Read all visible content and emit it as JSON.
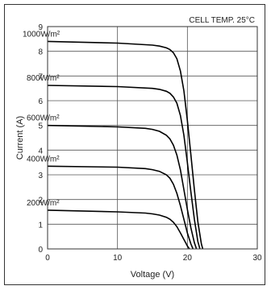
{
  "chart_data": {
    "type": "line",
    "title": "",
    "annotation": "CELL TEMP. 25°C",
    "xlabel": "Voltage (V)",
    "ylabel": "Current (A)",
    "xlim": [
      0,
      30
    ],
    "ylim": [
      0,
      9
    ],
    "xticks": [
      0,
      10,
      20,
      30
    ],
    "yticks": [
      0,
      1,
      2,
      3,
      4,
      5,
      6,
      7,
      8,
      9
    ],
    "grid": true,
    "series": [
      {
        "name": "1000W/m²",
        "x": [
          0,
          10,
          15,
          16,
          17,
          17.5,
          18,
          18.5,
          19,
          19.5,
          20,
          20.5,
          21,
          21.5,
          22,
          22.2
        ],
        "y": [
          8.4,
          8.33,
          8.25,
          8.21,
          8.14,
          8.07,
          7.94,
          7.7,
          7.2,
          6.4,
          5.2,
          3.8,
          2.4,
          1.1,
          0.2,
          0
        ]
      },
      {
        "name": "800W/m²",
        "x": [
          0,
          10,
          15,
          16,
          17,
          17.5,
          18,
          18.5,
          19,
          19.5,
          20,
          20.5,
          21,
          21.5,
          21.8
        ],
        "y": [
          6.62,
          6.57,
          6.5,
          6.46,
          6.38,
          6.3,
          6.15,
          5.9,
          5.4,
          4.6,
          3.5,
          2.3,
          1.2,
          0.3,
          0
        ]
      },
      {
        "name": "600W/m²",
        "x": [
          0,
          10,
          14,
          15,
          16,
          17,
          17.5,
          18,
          18.5,
          19,
          19.5,
          20,
          20.5,
          21,
          21.3
        ],
        "y": [
          5.0,
          4.94,
          4.88,
          4.84,
          4.76,
          4.6,
          4.45,
          4.2,
          3.8,
          3.2,
          2.4,
          1.6,
          0.85,
          0.25,
          0
        ]
      },
      {
        "name": "400W/m²",
        "x": [
          0,
          10,
          14,
          15,
          16,
          17,
          17.5,
          18,
          18.5,
          19,
          19.5,
          20,
          20.5,
          20.8
        ],
        "y": [
          3.35,
          3.31,
          3.25,
          3.21,
          3.14,
          3.0,
          2.86,
          2.62,
          2.25,
          1.75,
          1.2,
          0.65,
          0.2,
          0
        ]
      },
      {
        "name": "200W/m²",
        "x": [
          0,
          10,
          14,
          15,
          16,
          17,
          17.5,
          18,
          18.5,
          19,
          19.5,
          20,
          20.3
        ],
        "y": [
          1.57,
          1.5,
          1.45,
          1.42,
          1.37,
          1.28,
          1.2,
          1.08,
          0.9,
          0.65,
          0.38,
          0.12,
          0
        ]
      }
    ]
  }
}
